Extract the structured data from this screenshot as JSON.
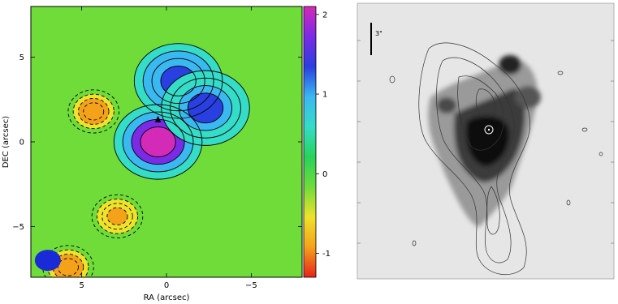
{
  "chart_data": [
    {
      "type": "heatmap",
      "title": "",
      "xlabel": "RA (arcsec)",
      "ylabel": "DEC (arcsec)",
      "xlim": [
        8,
        -8
      ],
      "ylim": [
        -8,
        8
      ],
      "x_ticks": [
        5,
        0,
        -5
      ],
      "y_ticks": [
        5,
        0,
        -5
      ],
      "colorbar": {
        "ticks": [
          2,
          1,
          0,
          -1
        ],
        "range": [
          -1.3,
          2.1
        ]
      },
      "colormap": [
        "#e8221a",
        "#f4a21a",
        "#eee22a",
        "#6fdc3a",
        "#27d35a",
        "#35dcc8",
        "#3ab8f0",
        "#2a3fe0",
        "#7b2ae6",
        "#d42ab8"
      ],
      "peaks": [
        {
          "x": 0.5,
          "y": 0.0,
          "value": 2.0
        },
        {
          "x": -0.7,
          "y": 3.6,
          "value": 1.4
        },
        {
          "x": -2.3,
          "y": 2.0,
          "value": 1.2
        },
        {
          "x": 4.3,
          "y": 1.8,
          "value": -1.0
        },
        {
          "x": 2.9,
          "y": -4.4,
          "value": -0.9
        },
        {
          "x": 5.8,
          "y": -7.4,
          "value": -1.0
        }
      ],
      "beam": {
        "x": 7.0,
        "y": -7.0,
        "color": "#1a2ad8"
      }
    },
    {
      "type": "heatmap",
      "title": "",
      "scale_bar_label": "3\"",
      "colors": {
        "background": "#e4e4e4",
        "emission": "#101010",
        "contours": "#444444"
      }
    }
  ]
}
